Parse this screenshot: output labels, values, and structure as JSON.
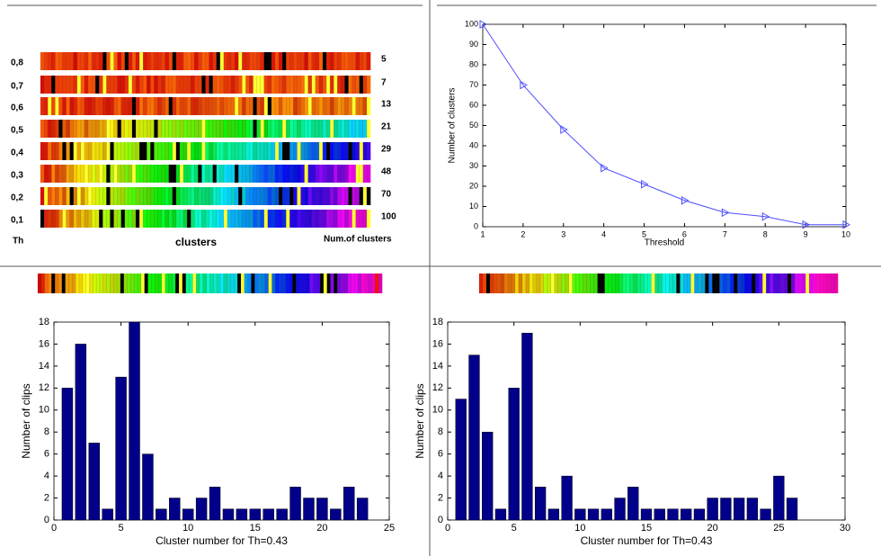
{
  "cluster_strips": {
    "thresholds": [
      "0,8",
      "0,7",
      "0,6",
      "0,5",
      "0,4",
      "0,3",
      "0,2",
      "0,1"
    ],
    "counts": [
      "5",
      "7",
      "13",
      "21",
      "29",
      "48",
      "70",
      "100"
    ],
    "th_label": "Th",
    "x_label": "clusters",
    "count_label": "Num.of clusters"
  },
  "chart_data": [
    {
      "type": "line",
      "x_label": "Threshold",
      "y_label": "Number of clusters",
      "x": [
        1,
        2,
        3,
        4,
        5,
        6,
        7,
        8,
        9,
        10
      ],
      "values": [
        100,
        70,
        48,
        29,
        21,
        13,
        7,
        5,
        1,
        1
      ],
      "color": "#4d4dff",
      "xlim": [
        1,
        10
      ],
      "ylim": [
        0,
        100
      ],
      "xticks": [
        1,
        2,
        3,
        4,
        5,
        6,
        7,
        8,
        9,
        10
      ],
      "yticks": [
        0,
        10,
        20,
        30,
        40,
        50,
        60,
        70,
        80,
        90,
        100
      ]
    },
    {
      "type": "bar",
      "x_label": "Cluster number for Th=0.43",
      "y_label": "Number of clips",
      "x": [
        1,
        2,
        3,
        4,
        5,
        6,
        7,
        8,
        9,
        10,
        11,
        12,
        13,
        14,
        15,
        16,
        17,
        18,
        19,
        20,
        21,
        22,
        23
      ],
      "values": [
        12,
        16,
        7,
        1,
        13,
        18,
        6,
        1,
        2,
        1,
        2,
        3,
        1,
        1,
        1,
        1,
        1,
        3,
        2,
        2,
        1,
        3,
        2
      ],
      "color": "#00008b",
      "xlim": [
        0,
        25
      ],
      "ylim": [
        0,
        18
      ],
      "xticks": [
        0,
        5,
        10,
        15,
        20,
        25
      ],
      "yticks": [
        0,
        2,
        4,
        6,
        8,
        10,
        12,
        14,
        16,
        18
      ]
    },
    {
      "type": "bar",
      "x_label": "Cluster number for Th=0.43",
      "y_label": "Number of clips",
      "x": [
        1,
        2,
        3,
        4,
        5,
        6,
        7,
        8,
        9,
        10,
        11,
        12,
        13,
        14,
        15,
        16,
        17,
        18,
        19,
        20,
        21,
        22,
        23,
        24,
        25,
        26
      ],
      "values": [
        11,
        15,
        8,
        1,
        12,
        17,
        3,
        1,
        4,
        1,
        1,
        1,
        2,
        3,
        1,
        1,
        1,
        1,
        1,
        2,
        2,
        2,
        2,
        1,
        4,
        2
      ],
      "color": "#00008b",
      "xlim": [
        0,
        30
      ],
      "ylim": [
        0,
        18
      ],
      "xticks": [
        0,
        5,
        10,
        15,
        20,
        25,
        30
      ],
      "yticks": [
        0,
        2,
        4,
        6,
        8,
        10,
        12,
        14,
        16,
        18
      ]
    }
  ]
}
